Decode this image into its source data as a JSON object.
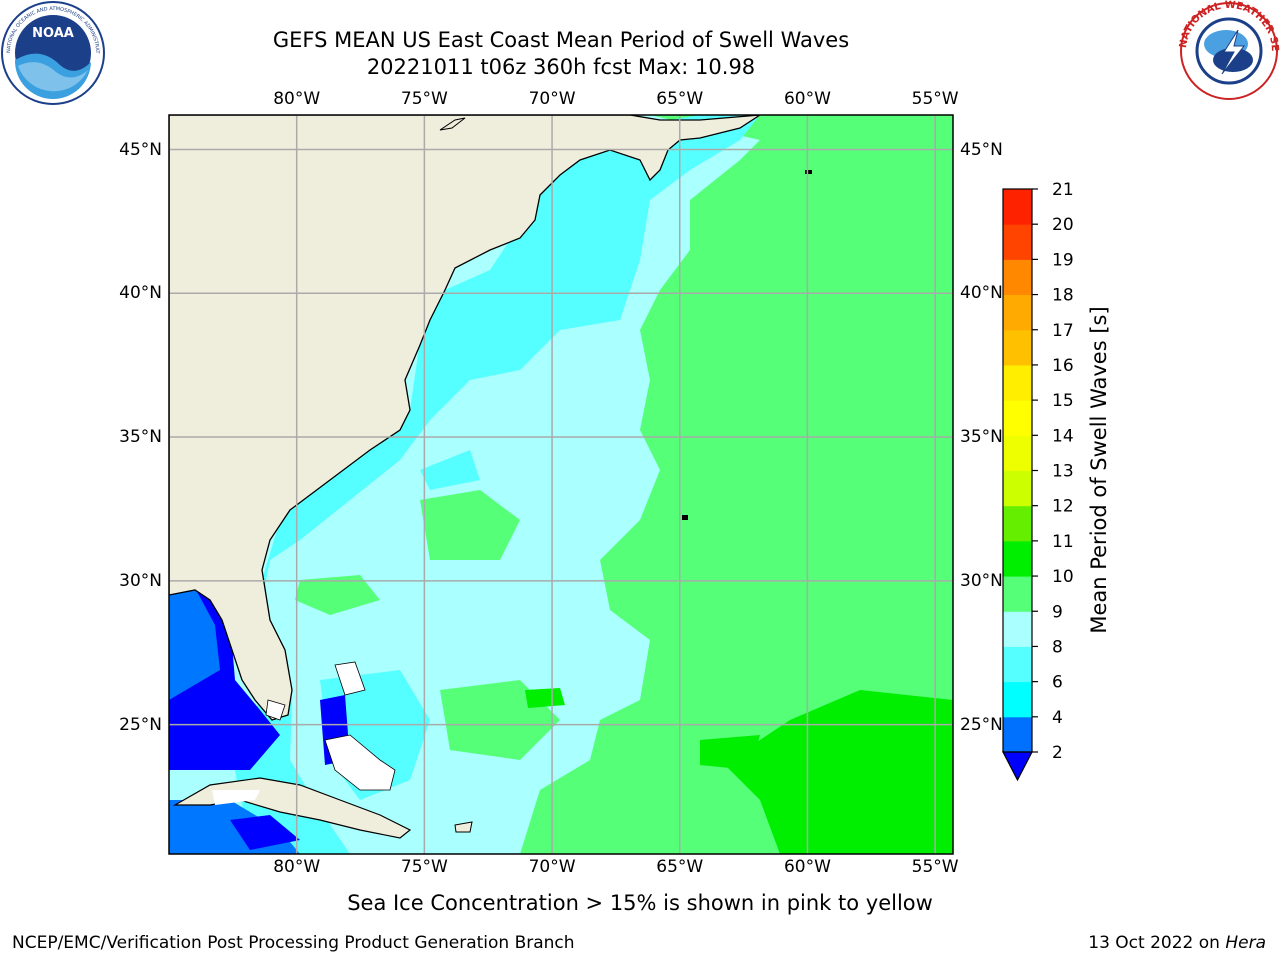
{
  "header": {
    "title_line1": "GEFS MEAN US East Coast Mean Period of Swell Waves",
    "title_line2": "20221011 t06z 360h fcst   Max: 10.98"
  },
  "logos": {
    "noaa_text": "NOAA",
    "noaa_ring_text": "NATIONAL OCEANIC AND ATMOSPHERIC ADMINISTRATION · U.S. DEPARTMENT OF COMMERCE",
    "nws_ring_text": "NATIONAL WEATHER SERVICE"
  },
  "map": {
    "lon_labels": [
      "80°W",
      "75°W",
      "70°W",
      "65°W",
      "60°W",
      "55°W"
    ],
    "lat_labels": [
      "45°N",
      "40°N",
      "35°N",
      "30°N",
      "25°N"
    ],
    "lon_values": [
      -80,
      -75,
      -70,
      -65,
      -60,
      -55
    ],
    "lat_values": [
      45,
      40,
      35,
      30,
      25
    ],
    "lon_range": [
      -85,
      -54.3
    ],
    "lat_range": [
      20.5,
      46.2
    ],
    "gridlines": true,
    "colors": {
      "land": "#efeedd",
      "ocean_6_8": "#55ffff",
      "ocean_8_9": "#aaffff",
      "ocean_9_10": "#55ff77",
      "ocean_10_11": "#00ee00",
      "ocean_2_4": "#0000ff",
      "ocean_4_6": "#0077ff"
    }
  },
  "colorbar": {
    "label": "Mean Period of Swell Waves [s]",
    "ticks": [
      "2",
      "4",
      "6",
      "8",
      "9",
      "10",
      "11",
      "12",
      "13",
      "14",
      "15",
      "16",
      "17",
      "18",
      "19",
      "20",
      "21"
    ],
    "colors": [
      "#0070ff",
      "#00ffff",
      "#55ffff",
      "#aaffff",
      "#55ff77",
      "#00ee00",
      "#66ee00",
      "#ccff00",
      "#eeff00",
      "#ffff00",
      "#ffee00",
      "#ffc000",
      "#ffaa00",
      "#ff8800",
      "#ff4400",
      "#ff2200"
    ],
    "under_color": "#0000ff"
  },
  "note": "Sea Ice Concentration > 15% is shown in pink to yellow",
  "footer": {
    "left": "NCEP/EMC/Verification Post Processing Product Generation Branch",
    "date": "13 Oct 2022 on ",
    "machine": "Hera"
  }
}
